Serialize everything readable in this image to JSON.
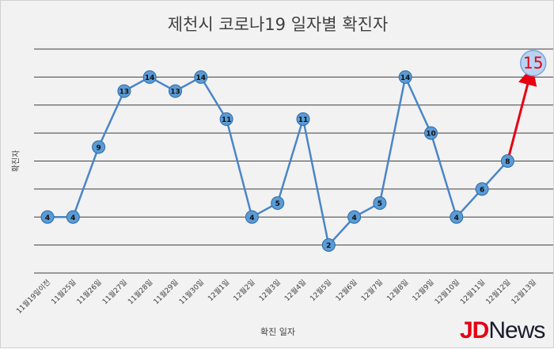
{
  "chart_data": {
    "type": "line",
    "title": "제천시 코로나19 일자별 확진자",
    "xlabel": "확진 일자",
    "ylabel": "확진자",
    "categories": [
      "11월19일이전",
      "11월25일",
      "11월26일",
      "11월27일",
      "11월28일",
      "11월29일",
      "11월30일",
      "12월1일",
      "12월2일",
      "12월3일",
      "12월4일",
      "12월5일",
      "12월6일",
      "12월7일",
      "12월8일",
      "12월9일",
      "12월10일",
      "12월11일",
      "12월12일",
      "12월13일"
    ],
    "series": [
      {
        "values": [
          4,
          4,
          9,
          13,
          14,
          13,
          14,
          11,
          4,
          5,
          11,
          2,
          4,
          5,
          14,
          10,
          4,
          6,
          8,
          15
        ]
      }
    ],
    "ylim": [
      0,
      16
    ],
    "gridlines": [
      0,
      2,
      4,
      6,
      8,
      10,
      12,
      14,
      16
    ],
    "grid": true,
    "highlight": {
      "index": 19,
      "label": "15",
      "color": "#e60012"
    },
    "colors": {
      "line": "#4a86c8",
      "marker": "#5b9bd5",
      "marker_border": "#2e6aa6",
      "grid": "#404040",
      "highlight": "#e60012"
    }
  },
  "watermark": {
    "part1": "JD",
    "part2": "News"
  }
}
